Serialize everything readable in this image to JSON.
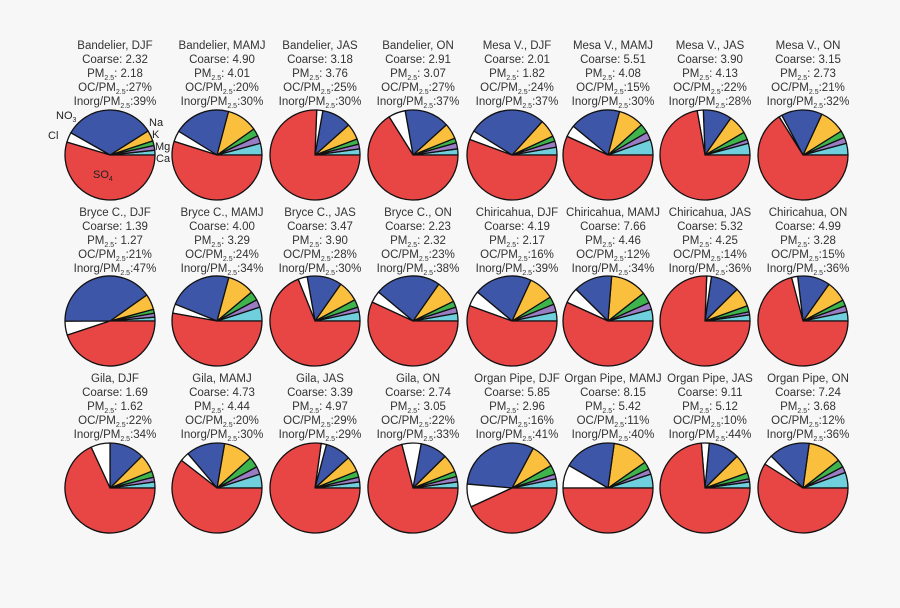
{
  "chart_data": {
    "type": "pie",
    "component_order": [
      "Ca",
      "Mg",
      "K",
      "Na",
      "NO3",
      "Cl",
      "SO4"
    ],
    "colors": {
      "SO4": "#e84545",
      "NO3": "#3d56a8",
      "Cl": "#ffffff",
      "Na": "#fbbf3e",
      "K": "#3eb54c",
      "Mg": "#9a7cc4",
      "Ca": "#6fcfdc"
    },
    "legend_labels": {
      "NO3": "NO",
      "NO3_sub": "3",
      "Cl": "Cl",
      "Na": "Na",
      "K": "K",
      "Mg": "Mg",
      "Ca": "Ca",
      "SO4": "SO",
      "SO4_sub": "4"
    },
    "text_labels": {
      "coarse": "Coarse: ",
      "pm": "PM",
      "sub": "2.5",
      "pm_sep": ": ",
      "oc": "OC/PM",
      "inorg": "Inorg/PM",
      "ratio_sep": ":"
    },
    "unit": "percent of ions (estimated)",
    "pies": [
      {
        "title": "Bandelier, DJF",
        "coarse": "2.32",
        "pm25": "2.18",
        "oc": "27%",
        "inorg": "39%",
        "values": [
          1.7,
          1.7,
          1.7,
          3.9,
          32.8,
          3.6,
          54.6
        ]
      },
      {
        "title": "Bandelier, MAMJ",
        "coarse": "4.90",
        "pm25": "4.01",
        "oc": "20%",
        "inorg": "30%",
        "values": [
          4.2,
          2.8,
          2.8,
          11.1,
          20.3,
          3.9,
          54.9
        ]
      },
      {
        "title": "Bandelier, JAS",
        "coarse": "3.18",
        "pm25": "3.76",
        "oc": "25%",
        "inorg": "30%",
        "values": [
          2.2,
          1.7,
          1.9,
          5.8,
          10.6,
          2.2,
          75.6
        ]
      },
      {
        "title": "Bandelier, ON",
        "coarse": "2.91",
        "pm25": "3.07",
        "oc": "27%",
        "inorg": "37%",
        "values": [
          2.2,
          2.2,
          1.7,
          5.6,
          16.1,
          6.1,
          66.1
        ]
      },
      {
        "title": "Mesa V., DJF",
        "coarse": "2.01",
        "pm25": "1.82",
        "oc": "24%",
        "inorg": "37%",
        "values": [
          2.8,
          2.2,
          1.9,
          6.4,
          27.8,
          3.3,
          55.6
        ]
      },
      {
        "title": "Mesa V., MAMJ",
        "coarse": "5.51",
        "pm25": "4.08",
        "oc": "15%",
        "inorg": "30%",
        "values": [
          5.6,
          2.8,
          3.3,
          9.2,
          18.1,
          4.2,
          56.8
        ]
      },
      {
        "title": "Mesa V., JAS",
        "coarse": "3.90",
        "pm25": "4.13",
        "oc": "22%",
        "inorg": "28%",
        "values": [
          4.2,
          1.4,
          2.8,
          6.9,
          10.3,
          2.2,
          72.2
        ]
      },
      {
        "title": "Mesa V., ON",
        "coarse": "3.15",
        "pm25": "2.73",
        "oc": "21%",
        "inorg": "32%",
        "values": [
          4.2,
          2.2,
          2.5,
          9.2,
          14.7,
          1.1,
          66.1
        ]
      },
      {
        "title": "Bryce C., DJF",
        "coarse": "1.39",
        "pm25": "1.27",
        "oc": "21%",
        "inorg": "47%",
        "values": [
          1.4,
          1.4,
          1.4,
          5.6,
          40.3,
          5.0,
          44.9
        ]
      },
      {
        "title": "Bryce C., MAMJ",
        "coarse": "4.00",
        "pm25": "3.29",
        "oc": "24%",
        "inorg": "34%",
        "values": [
          5.0,
          2.8,
          3.3,
          9.7,
          23.1,
          3.3,
          52.8
        ]
      },
      {
        "title": "Bryce C., JAS",
        "coarse": "3.47",
        "pm25": "3.90",
        "oc": "28%",
        "inorg": "30%",
        "values": [
          3.3,
          1.7,
          2.8,
          7.5,
          12.5,
          3.3,
          68.9
        ]
      },
      {
        "title": "Bryce C., ON",
        "coarse": "2.23",
        "pm25": "2.32",
        "oc": "23%",
        "inorg": "38%",
        "values": [
          2.8,
          2.2,
          2.2,
          8.1,
          23.6,
          4.2,
          56.9
        ]
      },
      {
        "title": "Chiricahua, DJF",
        "coarse": "4.19",
        "pm25": "2.17",
        "oc": "16%",
        "inorg": "39%",
        "values": [
          3.3,
          2.8,
          2.8,
          9.2,
          20.8,
          5.6,
          55.5
        ]
      },
      {
        "title": "Chiricahua, MAMJ",
        "coarse": "7.66",
        "pm25": "4.46",
        "oc": "12%",
        "inorg": "34%",
        "values": [
          4.2,
          2.5,
          3.9,
          13.1,
          13.9,
          5.6,
          56.8
        ]
      },
      {
        "title": "Chiricahua, JAS",
        "coarse": "5.32",
        "pm25": "4.25",
        "oc": "14%",
        "inorg": "36%",
        "values": [
          2.2,
          1.1,
          2.2,
          6.9,
          10.3,
          1.7,
          75.6
        ]
      },
      {
        "title": "Chiricahua, ON",
        "coarse": "4.99",
        "pm25": "3.28",
        "oc": "15%",
        "inorg": "36%",
        "values": [
          3.3,
          2.2,
          2.2,
          7.5,
          11.7,
          2.2,
          70.9
        ]
      },
      {
        "title": "Gila, DJF",
        "coarse": "1.69",
        "pm25": "1.62",
        "oc": "22%",
        "inorg": "34%",
        "values": [
          2.2,
          1.7,
          2.2,
          6.4,
          12.5,
          6.9,
          68.1
        ]
      },
      {
        "title": "Gila, MAMJ",
        "coarse": "4.73",
        "pm25": "4.44",
        "oc": "20%",
        "inorg": "30%",
        "values": [
          5.0,
          2.8,
          3.9,
          10.6,
          13.9,
          3.3,
          60.5
        ]
      },
      {
        "title": "Gila, JAS",
        "coarse": "3.39",
        "pm25": "4.97",
        "oc": "29%",
        "inorg": "29%",
        "values": [
          2.2,
          1.7,
          2.2,
          5.6,
          9.2,
          1.9,
          77.2
        ]
      },
      {
        "title": "Gila, ON",
        "coarse": "2.74",
        "pm25": "3.05",
        "oc": "22%",
        "inorg": "33%",
        "values": [
          2.2,
          1.9,
          1.9,
          6.4,
          9.7,
          6.9,
          71.0
        ]
      },
      {
        "title": "Organ Pipe, DJF",
        "coarse": "5.85",
        "pm25": "2.96",
        "oc": "16%",
        "inorg": "41%",
        "values": [
          3.3,
          1.7,
          3.3,
          8.9,
          31.4,
          8.3,
          43.1
        ]
      },
      {
        "title": "Organ Pipe, MAMJ",
        "coarse": "8.15",
        "pm25": "5.42",
        "oc": "11%",
        "inorg": "40%",
        "values": [
          5.0,
          1.9,
          2.8,
          13.1,
          18.9,
          8.3,
          50.0
        ]
      },
      {
        "title": "Organ Pipe, JAS",
        "coarse": "9.11",
        "pm25": "5.12",
        "oc": "10%",
        "inorg": "44%",
        "values": [
          2.2,
          1.1,
          2.2,
          6.9,
          11.1,
          2.8,
          73.7
        ]
      },
      {
        "title": "Organ Pipe, ON",
        "coarse": "7.24",
        "pm25": "3.68",
        "oc": "12%",
        "inorg": "36%",
        "values": [
          5.6,
          2.2,
          2.8,
          12.2,
          14.7,
          3.6,
          58.9
        ]
      }
    ]
  }
}
